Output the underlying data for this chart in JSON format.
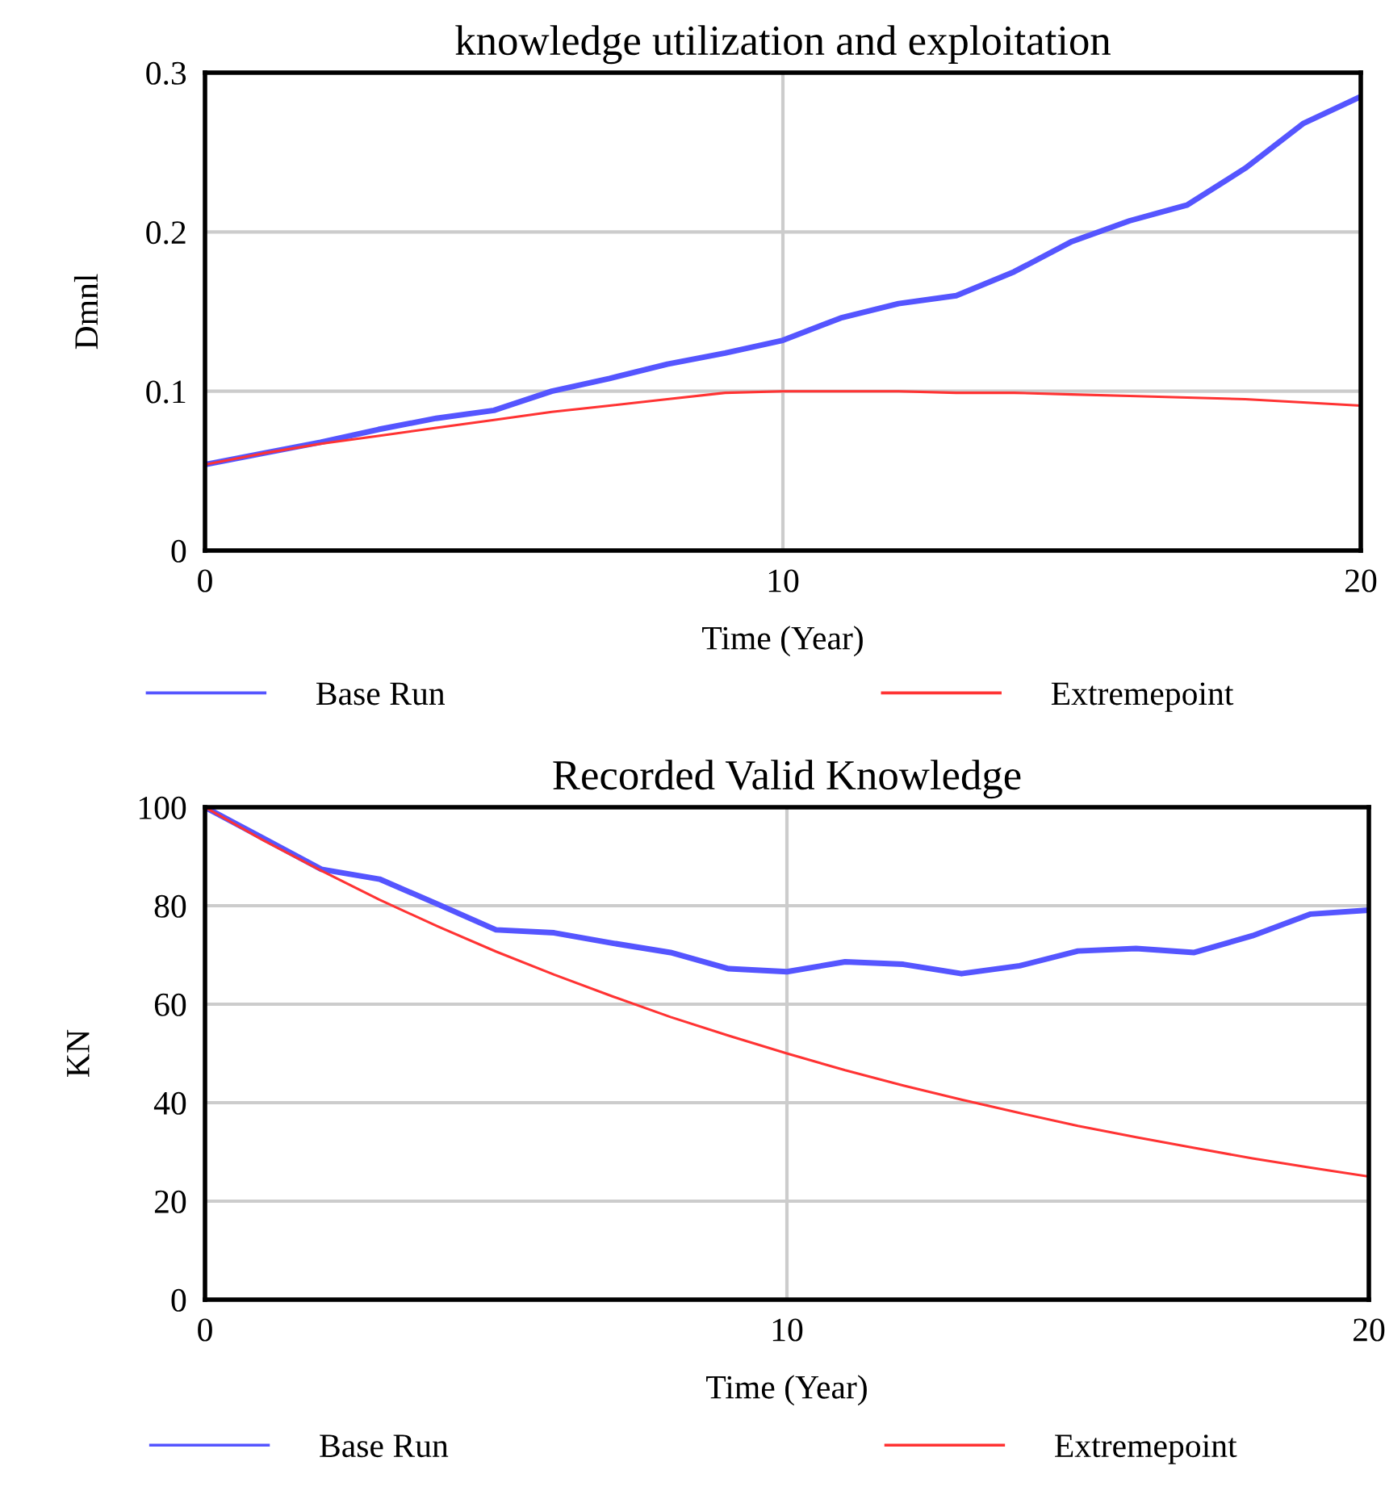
{
  "chart_data": [
    {
      "type": "line",
      "title": "knowledge utilization and exploitation",
      "xlabel": "Time (Year)",
      "ylabel": "Dmnl",
      "x": [
        0,
        1,
        2,
        3,
        4,
        5,
        6,
        7,
        8,
        9,
        10,
        11,
        12,
        13,
        14,
        15,
        16,
        17,
        18,
        19,
        20
      ],
      "series": [
        {
          "name": "Base Run",
          "color": "#5555ff",
          "values": [
            0.054,
            0.061,
            0.068,
            0.076,
            0.083,
            0.088,
            0.1,
            0.108,
            0.117,
            0.124,
            0.132,
            0.146,
            0.155,
            0.16,
            0.175,
            0.194,
            0.207,
            0.217,
            0.24,
            0.268,
            0.285
          ]
        },
        {
          "name": "Extremepoint",
          "color": "#ff3333",
          "values": [
            0.054,
            0.061,
            0.067,
            0.072,
            0.077,
            0.082,
            0.087,
            0.091,
            0.095,
            0.099,
            0.1,
            0.1,
            0.1,
            0.099,
            0.099,
            0.098,
            0.097,
            0.096,
            0.095,
            0.093,
            0.091
          ]
        }
      ],
      "xlim": [
        0,
        20
      ],
      "xticks": [
        0,
        10,
        20
      ],
      "ylim": [
        0,
        0.3
      ],
      "yticks": [
        0,
        0.1,
        0.2,
        0.3
      ],
      "grid": true,
      "legend": "bottom"
    },
    {
      "type": "line",
      "title": "Recorded Valid Knowledge",
      "xlabel": "Time (Year)",
      "ylabel": "KN",
      "x": [
        0,
        1,
        2,
        3,
        4,
        5,
        6,
        7,
        8,
        9,
        10,
        11,
        12,
        13,
        14,
        15,
        16,
        17,
        18,
        19,
        20
      ],
      "series": [
        {
          "name": "Base Run",
          "color": "#5555ff",
          "values": [
            100,
            93.7,
            87.4,
            85.4,
            80.3,
            75.1,
            74.5,
            72.4,
            70.5,
            67.2,
            66.6,
            68.6,
            68.1,
            66.2,
            67.8,
            70.8,
            71.3,
            70.5,
            73.9,
            78.3,
            79.1
          ]
        },
        {
          "name": "Extremepoint",
          "color": "#ff3333",
          "values": [
            100,
            93.3,
            87.1,
            81.2,
            75.8,
            70.7,
            66.0,
            61.6,
            57.4,
            53.6,
            50.0,
            46.6,
            43.5,
            40.6,
            37.9,
            35.3,
            33.0,
            30.8,
            28.7,
            26.8,
            25.0
          ]
        }
      ],
      "xlim": [
        0,
        20
      ],
      "xticks": [
        0,
        10,
        20
      ],
      "ylim": [
        0,
        100
      ],
      "yticks": [
        0,
        20,
        40,
        60,
        80,
        100
      ],
      "grid": true,
      "legend": "bottom"
    }
  ]
}
